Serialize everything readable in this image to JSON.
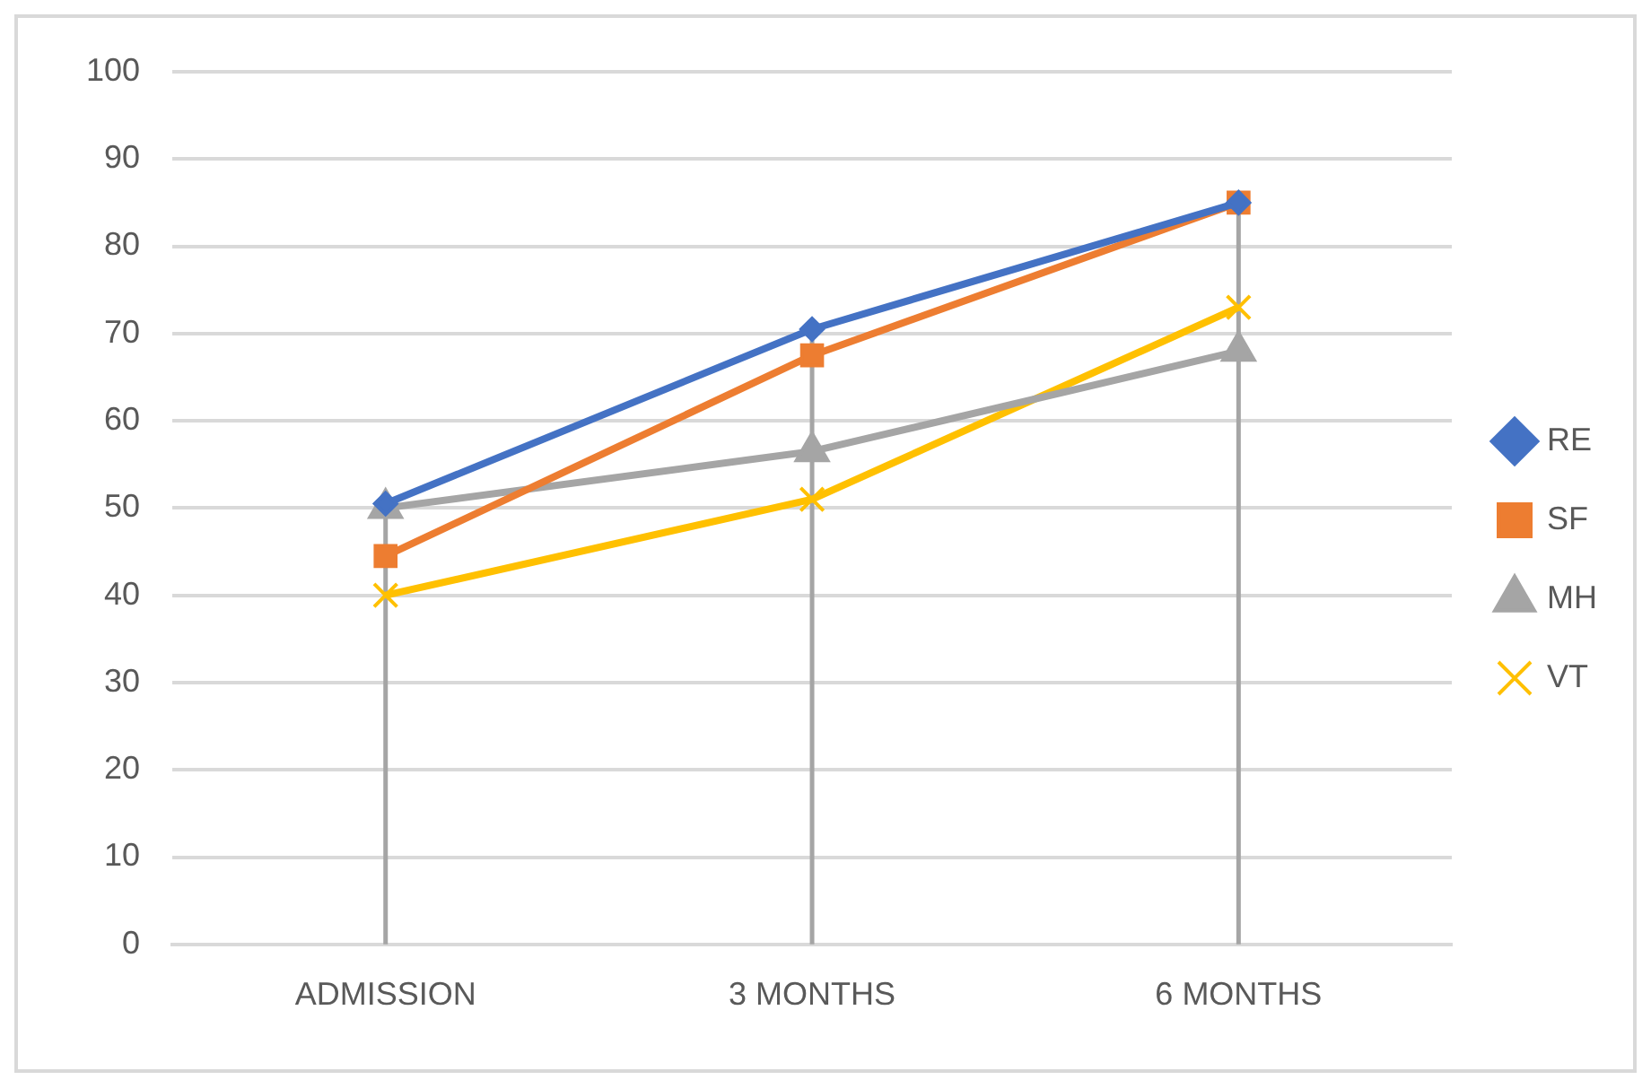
{
  "chart_data": {
    "type": "line",
    "categories": [
      "ADMISSION",
      "3 MONTHS",
      "6 MONTHS"
    ],
    "series": [
      {
        "name": "RE",
        "color": "#4472c4",
        "marker": "diamond",
        "values": [
          50.5,
          70.5,
          85
        ]
      },
      {
        "name": "SF",
        "color": "#ed7d31",
        "marker": "square",
        "values": [
          44.5,
          67.5,
          85
        ]
      },
      {
        "name": "MH",
        "color": "#a5a5a5",
        "marker": "triangle",
        "values": [
          50,
          56.5,
          68
        ]
      },
      {
        "name": "VT",
        "color": "#ffc000",
        "marker": "cross",
        "values": [
          40,
          51,
          73
        ]
      }
    ],
    "ylim": [
      0,
      100
    ],
    "yticks": [
      0,
      10,
      20,
      30,
      40,
      50,
      60,
      70,
      80,
      90,
      100
    ],
    "grid": "y",
    "legend": "right",
    "ref_lines": [
      {
        "axis": "x",
        "value": "ADMISSION",
        "color": "#a5a5a5"
      },
      {
        "axis": "x",
        "value": "3 MONTHS",
        "color": "#a5a5a5"
      },
      {
        "axis": "x",
        "value": "6 MONTHS",
        "color": "#a5a5a5"
      }
    ]
  }
}
